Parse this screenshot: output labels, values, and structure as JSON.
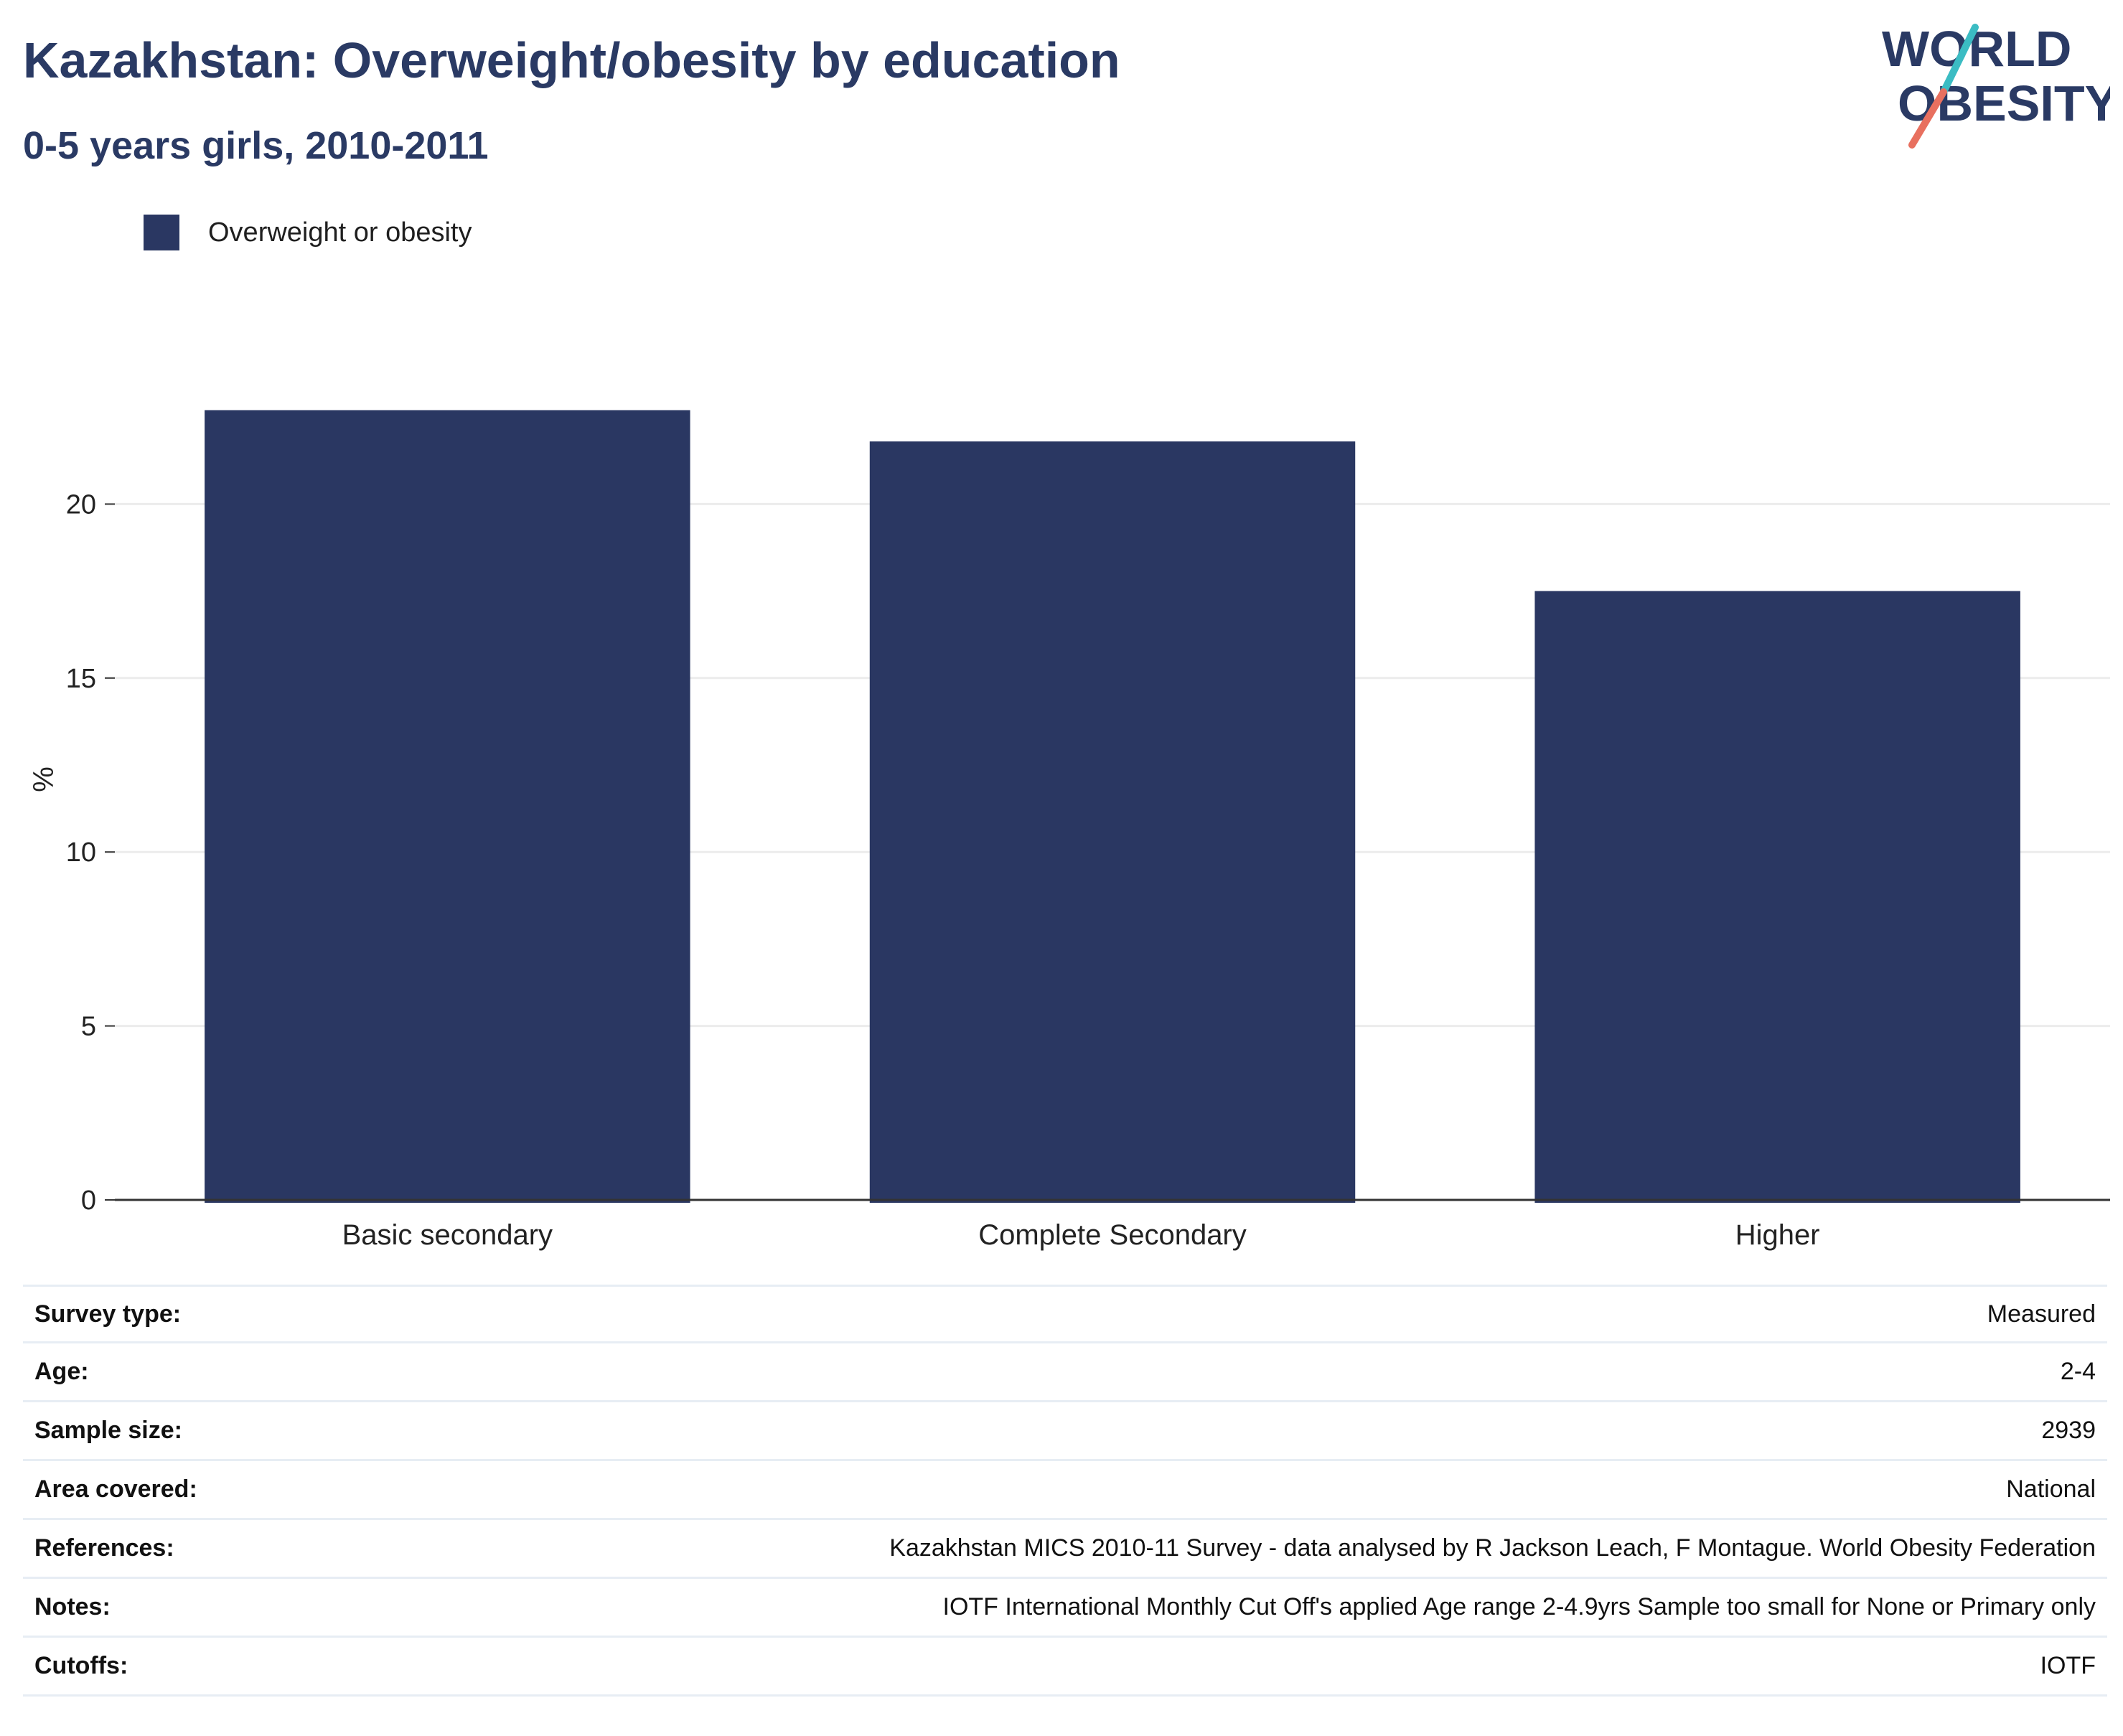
{
  "header": {
    "title": "Kazakhstan: Overweight/obesity by education",
    "subtitle": "0-5 years girls, 2010-2011"
  },
  "logo": {
    "line1": "WORLD",
    "line2": "OBESITY"
  },
  "legend": {
    "label": "Overweight or obesity"
  },
  "colors": {
    "bar": "#2a3762",
    "title": "#2a3a64",
    "grid": "#ececec",
    "axis": "#333333",
    "logo_teal": "#3bbcc3",
    "logo_coral": "#e8705f"
  },
  "chart_data": {
    "type": "bar",
    "categories": [
      "Basic secondary",
      "Complete Secondary",
      "Higher"
    ],
    "series": [
      {
        "name": "Overweight or obesity",
        "values": [
          22.7,
          21.8,
          17.5
        ]
      }
    ],
    "ylabel": "%",
    "ylim": [
      0,
      25
    ],
    "yticks": [
      0,
      5,
      10,
      15,
      20
    ],
    "grid": true,
    "legend_position": "top-left"
  },
  "info": [
    {
      "key": "Survey type:",
      "value": "Measured"
    },
    {
      "key": "Age:",
      "value": "2-4"
    },
    {
      "key": "Sample size:",
      "value": "2939"
    },
    {
      "key": "Area covered:",
      "value": "National"
    },
    {
      "key": "References:",
      "value": "Kazakhstan MICS 2010-11 Survey - data analysed by R Jackson Leach, F Montague. World Obesity Federation"
    },
    {
      "key": "Notes:",
      "value": "IOTF International Monthly Cut Off's applied Age range 2-4.9yrs Sample too small for None or Primary only"
    },
    {
      "key": "Cutoffs:",
      "value": "IOTF"
    }
  ]
}
